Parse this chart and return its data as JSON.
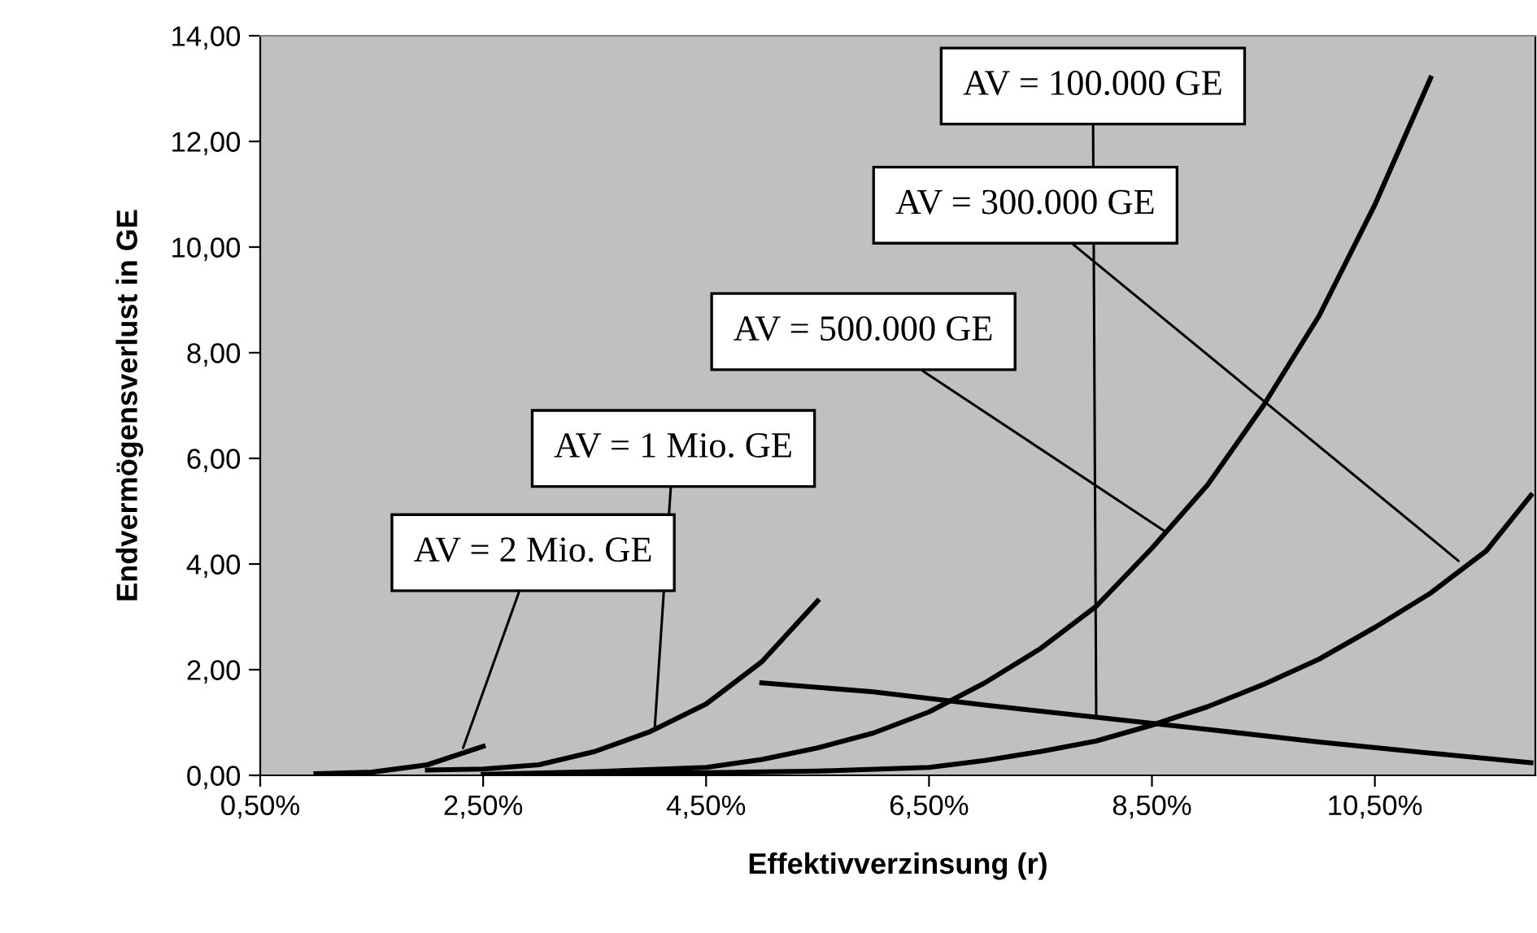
{
  "chart_data": {
    "type": "line",
    "xlabel": "Effektivverzinsung (r)",
    "ylabel": "Endvermögensverlust in GE",
    "xlim": [
      0.5,
      11.94
    ],
    "ylim": [
      0,
      14
    ],
    "xticks": [
      {
        "value": 0.5,
        "label": "0,50%"
      },
      {
        "value": 2.5,
        "label": "2,50%"
      },
      {
        "value": 4.5,
        "label": "4,50%"
      },
      {
        "value": 6.5,
        "label": "6,50%"
      },
      {
        "value": 8.5,
        "label": "8,50%"
      },
      {
        "value": 10.5,
        "label": "10,50%"
      }
    ],
    "yticks": [
      {
        "value": 0,
        "label": "0,00"
      },
      {
        "value": 2,
        "label": "2,00"
      },
      {
        "value": 4,
        "label": "4,00"
      },
      {
        "value": 6,
        "label": "6,00"
      },
      {
        "value": 8,
        "label": "8,00"
      },
      {
        "value": 10,
        "label": "10,00"
      },
      {
        "value": 12,
        "label": "12,00"
      },
      {
        "value": 14,
        "label": "14,00"
      }
    ],
    "grid": false,
    "marker": "none",
    "line_style": "solid",
    "series": [
      {
        "color": "#000000",
        "x": [
          1.0,
          1.5,
          2.0,
          2.5
        ],
        "values": [
          0.03,
          0.06,
          0.2,
          0.55
        ]
      },
      {
        "color": "#000000",
        "x": [
          2.0,
          2.5,
          3.0,
          3.5,
          4.0,
          4.5,
          5.0,
          5.5
        ],
        "values": [
          0.1,
          0.12,
          0.2,
          0.45,
          0.83,
          1.35,
          2.15,
          3.3
        ]
      },
      {
        "color": "#000000",
        "x": [
          2.5,
          3.5,
          4.5,
          5.0,
          5.5,
          6.0,
          6.5,
          7.0,
          7.5,
          8.0,
          8.5,
          9.0,
          9.5,
          10.0,
          10.5,
          11.0
        ],
        "values": [
          0.02,
          0.07,
          0.15,
          0.3,
          0.52,
          0.8,
          1.2,
          1.75,
          2.4,
          3.2,
          4.3,
          5.5,
          7.0,
          8.7,
          10.8,
          13.2
        ]
      },
      {
        "color": "#000000",
        "x": [
          3.0,
          4.5,
          5.5,
          6.5,
          7.0,
          7.5,
          8.0,
          8.5,
          9.0,
          9.5,
          10.0,
          10.5,
          11.0,
          11.5,
          11.9
        ],
        "values": [
          0.02,
          0.05,
          0.08,
          0.15,
          0.28,
          0.45,
          0.65,
          0.95,
          1.3,
          1.72,
          2.2,
          2.8,
          3.45,
          4.25,
          5.3
        ]
      },
      {
        "color": "#000000",
        "x": [
          5.0,
          6.0,
          7.0,
          8.0,
          9.0,
          10.0,
          11.0,
          11.9
        ],
        "values": [
          1.75,
          1.58,
          1.33,
          1.1,
          0.87,
          0.63,
          0.42,
          0.24
        ]
      }
    ],
    "annotations": [
      {
        "text": "AV = 100.000 GE",
        "x": 8.0,
        "y": 1.1
      },
      {
        "text": "AV = 300.000 GE",
        "x": 11.25,
        "y": 4.06
      },
      {
        "text": "AV = 500.000 GE",
        "x": 8.63,
        "y": 4.6
      },
      {
        "text": "AV = 1 Mio. GE",
        "x": 4.04,
        "y": 0.92
      },
      {
        "text": "AV = 2 Mio. GE",
        "x": 2.32,
        "y": 0.52
      }
    ]
  }
}
